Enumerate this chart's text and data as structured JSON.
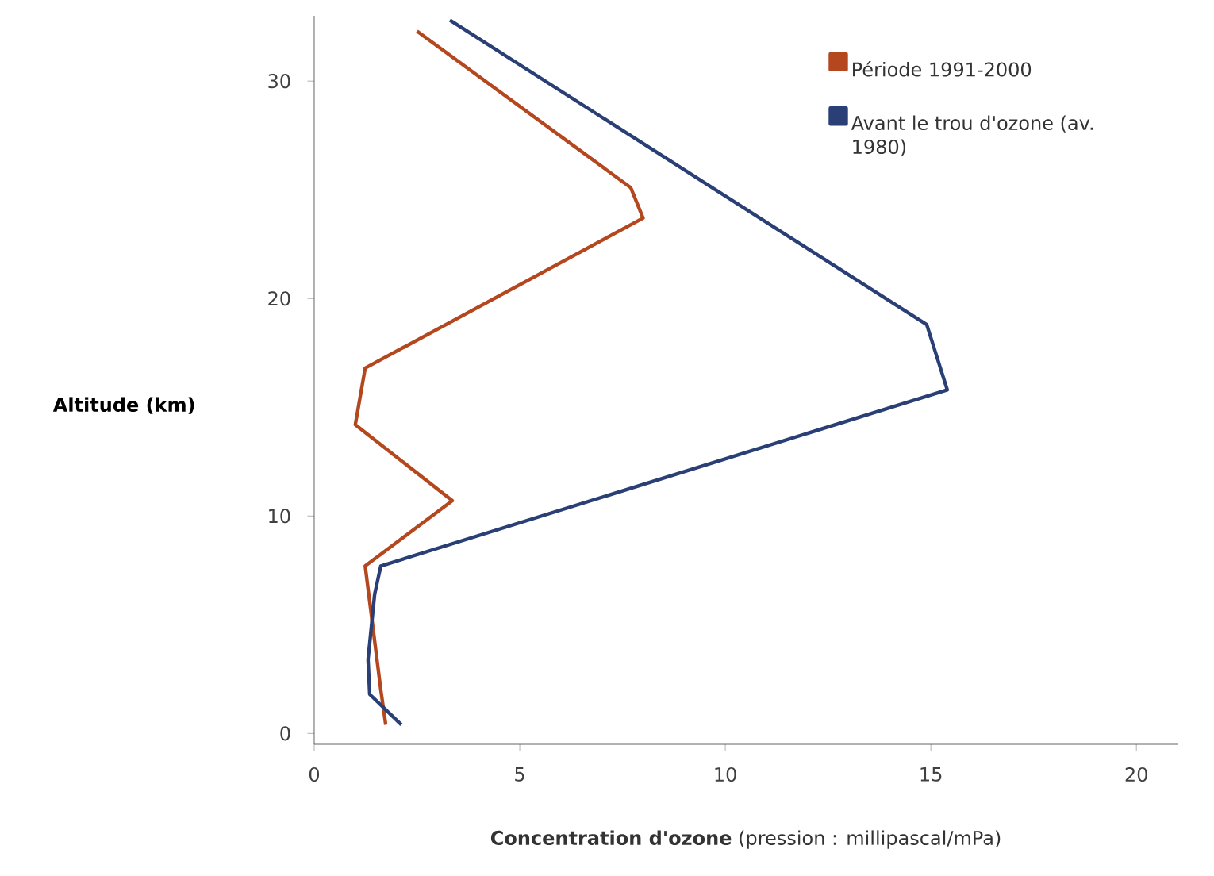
{
  "chart_data": {
    "type": "line",
    "xlabel": "**Concentration d'ozone** (pression : millipascal/mPa)",
    "ylabel": "Altitude (km)",
    "xlim": [
      0,
      21
    ],
    "ylim": [
      -0.5,
      33
    ],
    "xticks": [
      0,
      5,
      10,
      15,
      20
    ],
    "yticks": [
      0,
      10,
      20,
      30
    ],
    "legend": "top right",
    "series": [
      {
        "name": "Période 1991-2000",
        "color": "#b5471f",
        "x": [
          1.74,
          1.62,
          1.24,
          3.36,
          1.0,
          1.24,
          8.0,
          7.7,
          2.5
        ],
        "values": [
          0.4,
          2.0,
          7.7,
          10.7,
          14.2,
          16.8,
          23.7,
          25.1,
          32.3
        ]
      },
      {
        "name": "Avant le trou d'ozone (av. 1980)",
        "color": "#2a3f75",
        "x": [
          2.12,
          1.35,
          1.31,
          1.47,
          1.62,
          15.4,
          14.9,
          3.3
        ],
        "values": [
          0.4,
          1.8,
          3.4,
          6.4,
          7.7,
          15.8,
          18.8,
          32.8
        ]
      }
    ]
  }
}
